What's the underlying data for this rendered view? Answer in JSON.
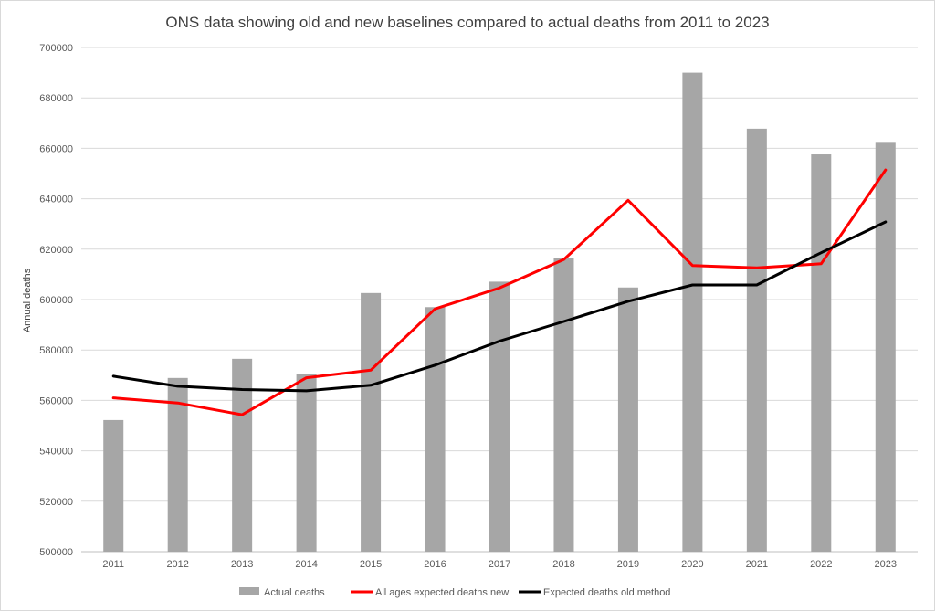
{
  "chart_data": {
    "type": "bar",
    "title": "ONS data showing old and new baselines compared to actual deaths from 2011 to 2023",
    "xlabel": "",
    "ylabel": "Annual deaths",
    "categories": [
      "2011",
      "2012",
      "2013",
      "2014",
      "2015",
      "2016",
      "2017",
      "2018",
      "2019",
      "2020",
      "2021",
      "2022",
      "2023"
    ],
    "ylim": [
      500000,
      700000
    ],
    "yticks": [
      "500000",
      "520000",
      "540000",
      "560000",
      "580000",
      "600000",
      "620000",
      "640000",
      "660000",
      "680000",
      "700000"
    ],
    "grid": true,
    "legend_position": "bottom",
    "series": [
      {
        "name": "Actual deaths",
        "kind": "bar",
        "color": "#a6a6a6",
        "values": [
          552200,
          568900,
          576500,
          570300,
          602600,
          597000,
          607100,
          616300,
          604800,
          690000,
          667800,
          657600,
          662200
        ]
      },
      {
        "name": "All ages expected deaths new",
        "kind": "line",
        "color": "#ff0000",
        "values": [
          561000,
          559000,
          554300,
          569000,
          572000,
          596300,
          604600,
          615900,
          639400,
          613500,
          612600,
          614200,
          651400
        ]
      },
      {
        "name": "Expected deaths old method",
        "kind": "line",
        "color": "#000000",
        "values": [
          569600,
          565600,
          564300,
          563800,
          566000,
          574000,
          583500,
          591300,
          599300,
          605800,
          605800,
          618600,
          630800
        ]
      }
    ]
  }
}
